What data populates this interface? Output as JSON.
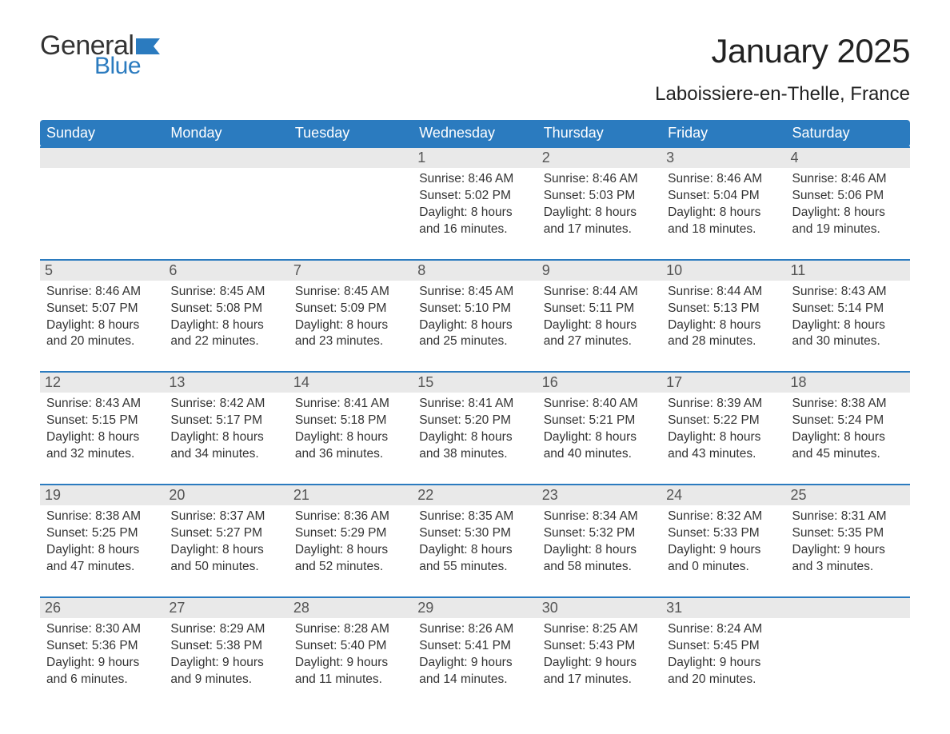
{
  "logo": {
    "word1": "General",
    "word2": "Blue"
  },
  "title": "January 2025",
  "subtitle": "Laboissiere-en-Thelle, France",
  "colors": {
    "header_bg": "#2b7bbf",
    "header_text": "#ffffff",
    "daynum_bg": "#e9e9e9",
    "daynum_text": "#555555",
    "body_text": "#333333",
    "row_border": "#2b7bbf",
    "page_bg": "#ffffff",
    "logo_blue": "#2b7bbf"
  },
  "fontsize": {
    "title": 42,
    "subtitle": 24,
    "column_header": 18,
    "daynum": 18,
    "info": 15.5,
    "logo_general": 34,
    "logo_blue": 30
  },
  "columns": [
    "Sunday",
    "Monday",
    "Tuesday",
    "Wednesday",
    "Thursday",
    "Friday",
    "Saturday"
  ],
  "weeks": [
    [
      {
        "day": "",
        "sunrise": "",
        "sunset": "",
        "daylight": ""
      },
      {
        "day": "",
        "sunrise": "",
        "sunset": "",
        "daylight": ""
      },
      {
        "day": "",
        "sunrise": "",
        "sunset": "",
        "daylight": ""
      },
      {
        "day": "1",
        "sunrise": "Sunrise: 8:46 AM",
        "sunset": "Sunset: 5:02 PM",
        "daylight": "Daylight: 8 hours and 16 minutes."
      },
      {
        "day": "2",
        "sunrise": "Sunrise: 8:46 AM",
        "sunset": "Sunset: 5:03 PM",
        "daylight": "Daylight: 8 hours and 17 minutes."
      },
      {
        "day": "3",
        "sunrise": "Sunrise: 8:46 AM",
        "sunset": "Sunset: 5:04 PM",
        "daylight": "Daylight: 8 hours and 18 minutes."
      },
      {
        "day": "4",
        "sunrise": "Sunrise: 8:46 AM",
        "sunset": "Sunset: 5:06 PM",
        "daylight": "Daylight: 8 hours and 19 minutes."
      }
    ],
    [
      {
        "day": "5",
        "sunrise": "Sunrise: 8:46 AM",
        "sunset": "Sunset: 5:07 PM",
        "daylight": "Daylight: 8 hours and 20 minutes."
      },
      {
        "day": "6",
        "sunrise": "Sunrise: 8:45 AM",
        "sunset": "Sunset: 5:08 PM",
        "daylight": "Daylight: 8 hours and 22 minutes."
      },
      {
        "day": "7",
        "sunrise": "Sunrise: 8:45 AM",
        "sunset": "Sunset: 5:09 PM",
        "daylight": "Daylight: 8 hours and 23 minutes."
      },
      {
        "day": "8",
        "sunrise": "Sunrise: 8:45 AM",
        "sunset": "Sunset: 5:10 PM",
        "daylight": "Daylight: 8 hours and 25 minutes."
      },
      {
        "day": "9",
        "sunrise": "Sunrise: 8:44 AM",
        "sunset": "Sunset: 5:11 PM",
        "daylight": "Daylight: 8 hours and 27 minutes."
      },
      {
        "day": "10",
        "sunrise": "Sunrise: 8:44 AM",
        "sunset": "Sunset: 5:13 PM",
        "daylight": "Daylight: 8 hours and 28 minutes."
      },
      {
        "day": "11",
        "sunrise": "Sunrise: 8:43 AM",
        "sunset": "Sunset: 5:14 PM",
        "daylight": "Daylight: 8 hours and 30 minutes."
      }
    ],
    [
      {
        "day": "12",
        "sunrise": "Sunrise: 8:43 AM",
        "sunset": "Sunset: 5:15 PM",
        "daylight": "Daylight: 8 hours and 32 minutes."
      },
      {
        "day": "13",
        "sunrise": "Sunrise: 8:42 AM",
        "sunset": "Sunset: 5:17 PM",
        "daylight": "Daylight: 8 hours and 34 minutes."
      },
      {
        "day": "14",
        "sunrise": "Sunrise: 8:41 AM",
        "sunset": "Sunset: 5:18 PM",
        "daylight": "Daylight: 8 hours and 36 minutes."
      },
      {
        "day": "15",
        "sunrise": "Sunrise: 8:41 AM",
        "sunset": "Sunset: 5:20 PM",
        "daylight": "Daylight: 8 hours and 38 minutes."
      },
      {
        "day": "16",
        "sunrise": "Sunrise: 8:40 AM",
        "sunset": "Sunset: 5:21 PM",
        "daylight": "Daylight: 8 hours and 40 minutes."
      },
      {
        "day": "17",
        "sunrise": "Sunrise: 8:39 AM",
        "sunset": "Sunset: 5:22 PM",
        "daylight": "Daylight: 8 hours and 43 minutes."
      },
      {
        "day": "18",
        "sunrise": "Sunrise: 8:38 AM",
        "sunset": "Sunset: 5:24 PM",
        "daylight": "Daylight: 8 hours and 45 minutes."
      }
    ],
    [
      {
        "day": "19",
        "sunrise": "Sunrise: 8:38 AM",
        "sunset": "Sunset: 5:25 PM",
        "daylight": "Daylight: 8 hours and 47 minutes."
      },
      {
        "day": "20",
        "sunrise": "Sunrise: 8:37 AM",
        "sunset": "Sunset: 5:27 PM",
        "daylight": "Daylight: 8 hours and 50 minutes."
      },
      {
        "day": "21",
        "sunrise": "Sunrise: 8:36 AM",
        "sunset": "Sunset: 5:29 PM",
        "daylight": "Daylight: 8 hours and 52 minutes."
      },
      {
        "day": "22",
        "sunrise": "Sunrise: 8:35 AM",
        "sunset": "Sunset: 5:30 PM",
        "daylight": "Daylight: 8 hours and 55 minutes."
      },
      {
        "day": "23",
        "sunrise": "Sunrise: 8:34 AM",
        "sunset": "Sunset: 5:32 PM",
        "daylight": "Daylight: 8 hours and 58 minutes."
      },
      {
        "day": "24",
        "sunrise": "Sunrise: 8:32 AM",
        "sunset": "Sunset: 5:33 PM",
        "daylight": "Daylight: 9 hours and 0 minutes."
      },
      {
        "day": "25",
        "sunrise": "Sunrise: 8:31 AM",
        "sunset": "Sunset: 5:35 PM",
        "daylight": "Daylight: 9 hours and 3 minutes."
      }
    ],
    [
      {
        "day": "26",
        "sunrise": "Sunrise: 8:30 AM",
        "sunset": "Sunset: 5:36 PM",
        "daylight": "Daylight: 9 hours and 6 minutes."
      },
      {
        "day": "27",
        "sunrise": "Sunrise: 8:29 AM",
        "sunset": "Sunset: 5:38 PM",
        "daylight": "Daylight: 9 hours and 9 minutes."
      },
      {
        "day": "28",
        "sunrise": "Sunrise: 8:28 AM",
        "sunset": "Sunset: 5:40 PM",
        "daylight": "Daylight: 9 hours and 11 minutes."
      },
      {
        "day": "29",
        "sunrise": "Sunrise: 8:26 AM",
        "sunset": "Sunset: 5:41 PM",
        "daylight": "Daylight: 9 hours and 14 minutes."
      },
      {
        "day": "30",
        "sunrise": "Sunrise: 8:25 AM",
        "sunset": "Sunset: 5:43 PM",
        "daylight": "Daylight: 9 hours and 17 minutes."
      },
      {
        "day": "31",
        "sunrise": "Sunrise: 8:24 AM",
        "sunset": "Sunset: 5:45 PM",
        "daylight": "Daylight: 9 hours and 20 minutes."
      },
      {
        "day": "",
        "sunrise": "",
        "sunset": "",
        "daylight": ""
      }
    ]
  ]
}
